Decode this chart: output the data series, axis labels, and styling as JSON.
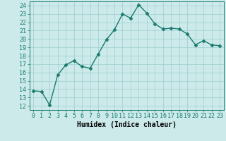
{
  "x": [
    0,
    1,
    2,
    3,
    4,
    5,
    6,
    7,
    8,
    9,
    10,
    11,
    12,
    13,
    14,
    15,
    16,
    17,
    18,
    19,
    20,
    21,
    22,
    23
  ],
  "y": [
    13.8,
    13.7,
    12.1,
    15.7,
    16.9,
    17.4,
    16.7,
    16.5,
    18.2,
    19.9,
    21.1,
    23.0,
    22.5,
    24.1,
    23.1,
    21.8,
    21.2,
    21.3,
    21.2,
    20.6,
    19.3,
    19.8,
    19.3,
    19.2
  ],
  "line_color": "#1a7a6e",
  "marker": "D",
  "markersize": 2.5,
  "linewidth": 1.0,
  "bg_color": "#cceaea",
  "grid_color": "#9ecece",
  "xlabel": "Humidex (Indice chaleur)",
  "xlabel_fontsize": 7,
  "tick_fontsize": 6,
  "xlim": [
    -0.5,
    23.5
  ],
  "ylim": [
    11.5,
    24.5
  ],
  "yticks": [
    12,
    13,
    14,
    15,
    16,
    17,
    18,
    19,
    20,
    21,
    22,
    23,
    24
  ],
  "xticks": [
    0,
    1,
    2,
    3,
    4,
    5,
    6,
    7,
    8,
    9,
    10,
    11,
    12,
    13,
    14,
    15,
    16,
    17,
    18,
    19,
    20,
    21,
    22,
    23
  ]
}
